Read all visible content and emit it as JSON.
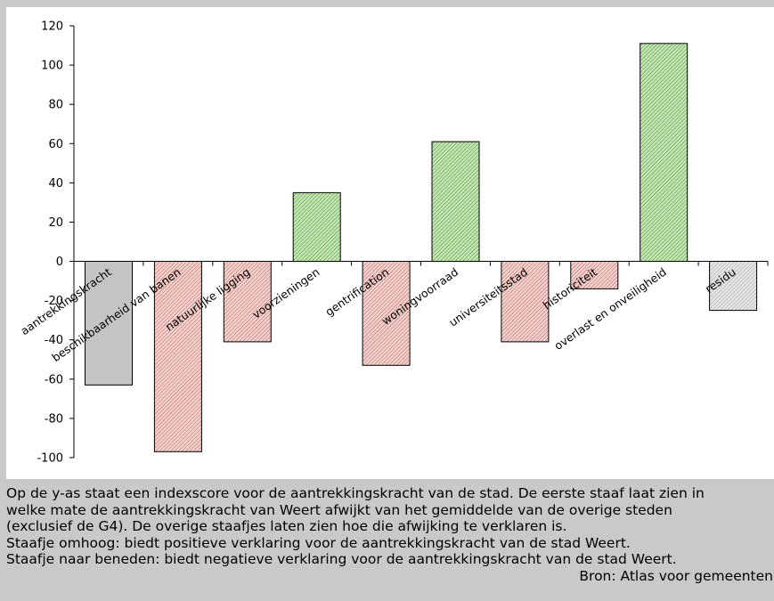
{
  "chart_data": {
    "type": "bar",
    "categories": [
      "aantrekkingskracht",
      "beschikbaarheid van banen",
      "natuurlijke ligging",
      "voorzieningen",
      "gentrification",
      "woningvoorraad",
      "universiteitsstad",
      "historiciteit",
      "overlast en onveiligheid",
      "residu"
    ],
    "values": [
      -63,
      -97,
      -41,
      35,
      -53,
      61,
      -41,
      -14,
      111,
      -25
    ],
    "bar_colors": [
      "gray",
      "red",
      "red",
      "green",
      "red",
      "green",
      "red",
      "red",
      "green",
      "gray-light"
    ],
    "ylim": [
      -100,
      120
    ],
    "yticks": [
      -100,
      -80,
      -60,
      -40,
      -20,
      0,
      20,
      40,
      60,
      80,
      100,
      120
    ],
    "title": "",
    "xlabel": "",
    "ylabel": "",
    "grid": false,
    "colors": {
      "green_fill": "#c6e6b2",
      "green_hatch": "#2f7f2f",
      "red_fill": "#f3d3cf",
      "red_hatch": "#b04a46",
      "gray_fill": "#c4c4c4",
      "gray_light_fill": "#e6e6e6",
      "gray_hatch": "#8a8a8a"
    }
  },
  "caption": {
    "line1": "Op de y-as staat een indexscore voor de aantrekkingskracht van de stad. De eerste staaf laat zien in",
    "line2": "welke mate de aantrekkingskracht van Weert afwijkt van het gemiddelde van de overige steden",
    "line3": "(exclusief de G4). De overige staafjes laten zien hoe die afwijking te verklaren is.",
    "line4": "Staafje omhoog: biedt positieve verklaring voor de aantrekkingskracht van de stad Weert.",
    "line5": "Staafje naar beneden: biedt negatieve verklaring voor de aantrekkingskracht van de stad Weert.",
    "source": "Bron: Atlas voor gemeenten"
  }
}
